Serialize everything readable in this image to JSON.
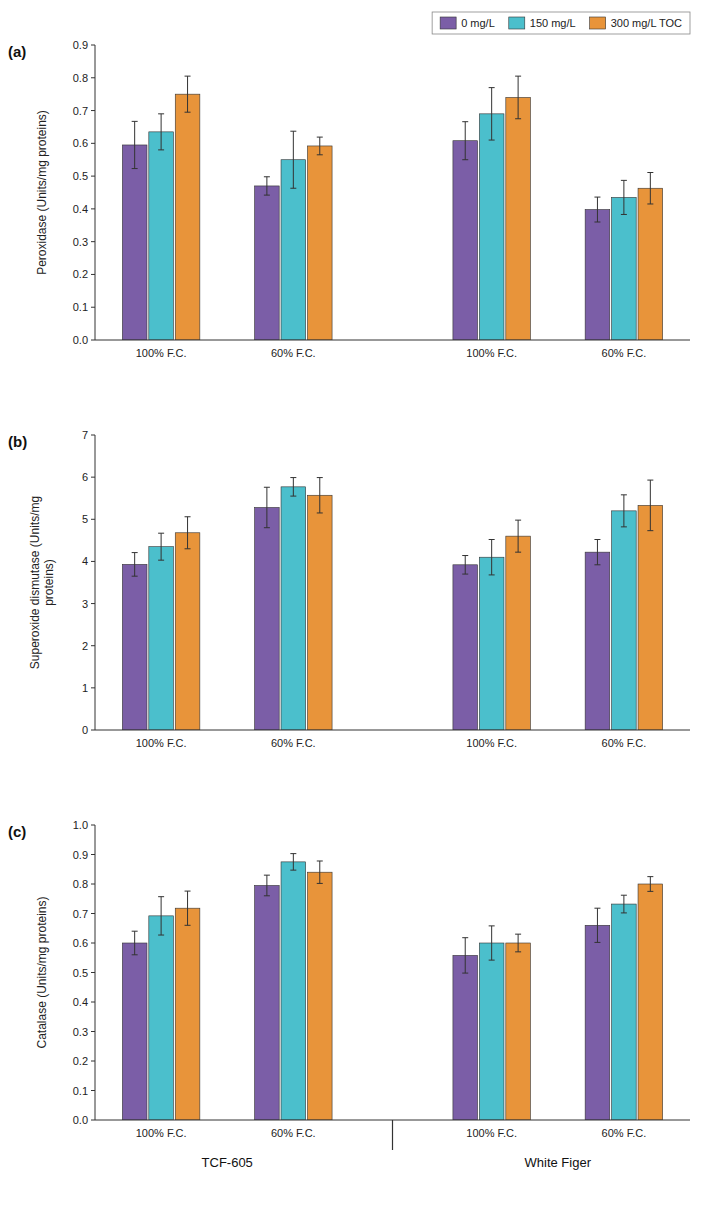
{
  "chart_data": [
    {
      "type": "bar",
      "title": "(a)",
      "ylabel": "Peroxidase (Units/mg proteins)",
      "categories": [
        "100% F.C.",
        "60% F.C.",
        "100% F.C.",
        "60% F.C."
      ],
      "series": [
        {
          "name": "0 mg/L",
          "color": "#7B5EA7",
          "values": [
            0.595,
            0.47,
            0.608,
            0.398
          ],
          "errors": [
            0.072,
            0.028,
            0.058,
            0.038
          ]
        },
        {
          "name": "150 mg/L",
          "color": "#4BBFCC",
          "values": [
            0.635,
            0.55,
            0.69,
            0.435
          ],
          "errors": [
            0.055,
            0.087,
            0.08,
            0.052
          ]
        },
        {
          "name": "300 mg/L TOC",
          "color": "#E8943A",
          "values": [
            0.75,
            0.592,
            0.74,
            0.463
          ],
          "errors": [
            0.055,
            0.027,
            0.065,
            0.048
          ]
        }
      ],
      "ylim": [
        0,
        0.9
      ],
      "yticks": [
        {
          "value": 0,
          "label": "0.0"
        },
        0.1,
        0.2,
        0.3,
        0.4,
        0.5,
        0.6,
        0.7,
        0.8,
        0.9
      ],
      "grid": false,
      "legend": "upper right"
    },
    {
      "type": "bar",
      "title": "(b)",
      "ylabel": "Superoxide dismutase (Units/mg\nproteins)",
      "categories": [
        "100% F.C.",
        "60% F.C.",
        "100% F.C.",
        "60% F.C."
      ],
      "series": [
        {
          "color": "#7B5EA7",
          "values": [
            3.93,
            5.28,
            3.92,
            4.22
          ],
          "errors": [
            0.28,
            0.48,
            0.22,
            0.3
          ]
        },
        {
          "color": "#4BBFCC",
          "values": [
            4.35,
            5.77,
            4.1,
            5.2
          ],
          "errors": [
            0.32,
            0.22,
            0.42,
            0.38
          ]
        },
        {
          "color": "#E8943A",
          "values": [
            4.68,
            5.57,
            4.6,
            5.33
          ],
          "errors": [
            0.38,
            0.42,
            0.38,
            0.6
          ]
        }
      ],
      "ylim": [
        0,
        7
      ],
      "yticks": [
        0,
        1,
        2,
        3,
        4,
        5,
        6,
        7
      ],
      "grid": false
    },
    {
      "type": "bar",
      "title": "(c)",
      "ylabel": "Catalase (Units/mg proteins)",
      "categories": [
        "100% F.C.",
        "60% F.C.",
        "100% F.C.",
        "60% F.C."
      ],
      "series": [
        {
          "color": "#7B5EA7",
          "values": [
            0.6,
            0.795,
            0.558,
            0.66
          ],
          "errors": [
            0.04,
            0.035,
            0.06,
            0.058
          ]
        },
        {
          "color": "#4BBFCC",
          "values": [
            0.692,
            0.875,
            0.6,
            0.732
          ],
          "errors": [
            0.065,
            0.028,
            0.058,
            0.03
          ]
        },
        {
          "color": "#E8943A",
          "values": [
            0.718,
            0.84,
            0.6,
            0.8
          ],
          "errors": [
            0.058,
            0.038,
            0.03,
            0.025
          ]
        }
      ],
      "ylim": [
        0,
        1.0
      ],
      "yticks": [
        {
          "value": 0,
          "label": "0.0"
        },
        0.1,
        0.2,
        0.3,
        0.4,
        0.5,
        0.6,
        0.7,
        0.8,
        0.9,
        {
          "value": 1.0,
          "label": "1.0"
        }
      ],
      "grid": false,
      "annotations": [
        "TCF-605",
        "White Figer"
      ]
    }
  ]
}
